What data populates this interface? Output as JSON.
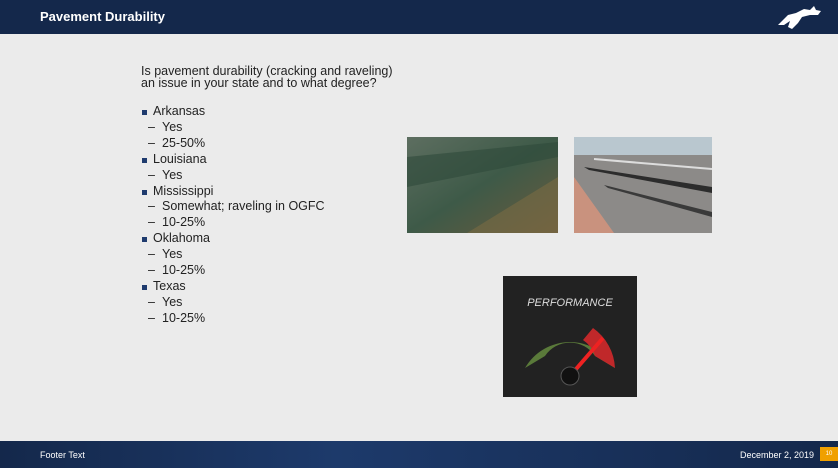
{
  "header": {
    "title": "Pavement Durability"
  },
  "question": {
    "lines": [
      "Is pavement durability (cracking and raveling)",
      "an issue in your state and to what degree?"
    ]
  },
  "states": [
    {
      "name": "Arkansas",
      "details": [
        "Yes",
        "25-50%"
      ]
    },
    {
      "name": "Louisiana",
      "details": [
        "Yes"
      ]
    },
    {
      "name": "Mississippi",
      "details": [
        "Somewhat; raveling in OGFC",
        "10-25%"
      ]
    },
    {
      "name": "Oklahoma",
      "details": [
        "Yes",
        "10-25%"
      ]
    },
    {
      "name": "Texas",
      "details": [
        "Yes",
        "10-25%"
      ]
    }
  ],
  "gauge": {
    "label": "PERFORMANCE"
  },
  "footer": {
    "text": "Footer Text",
    "date": "December 2, 2019",
    "page": "10"
  }
}
